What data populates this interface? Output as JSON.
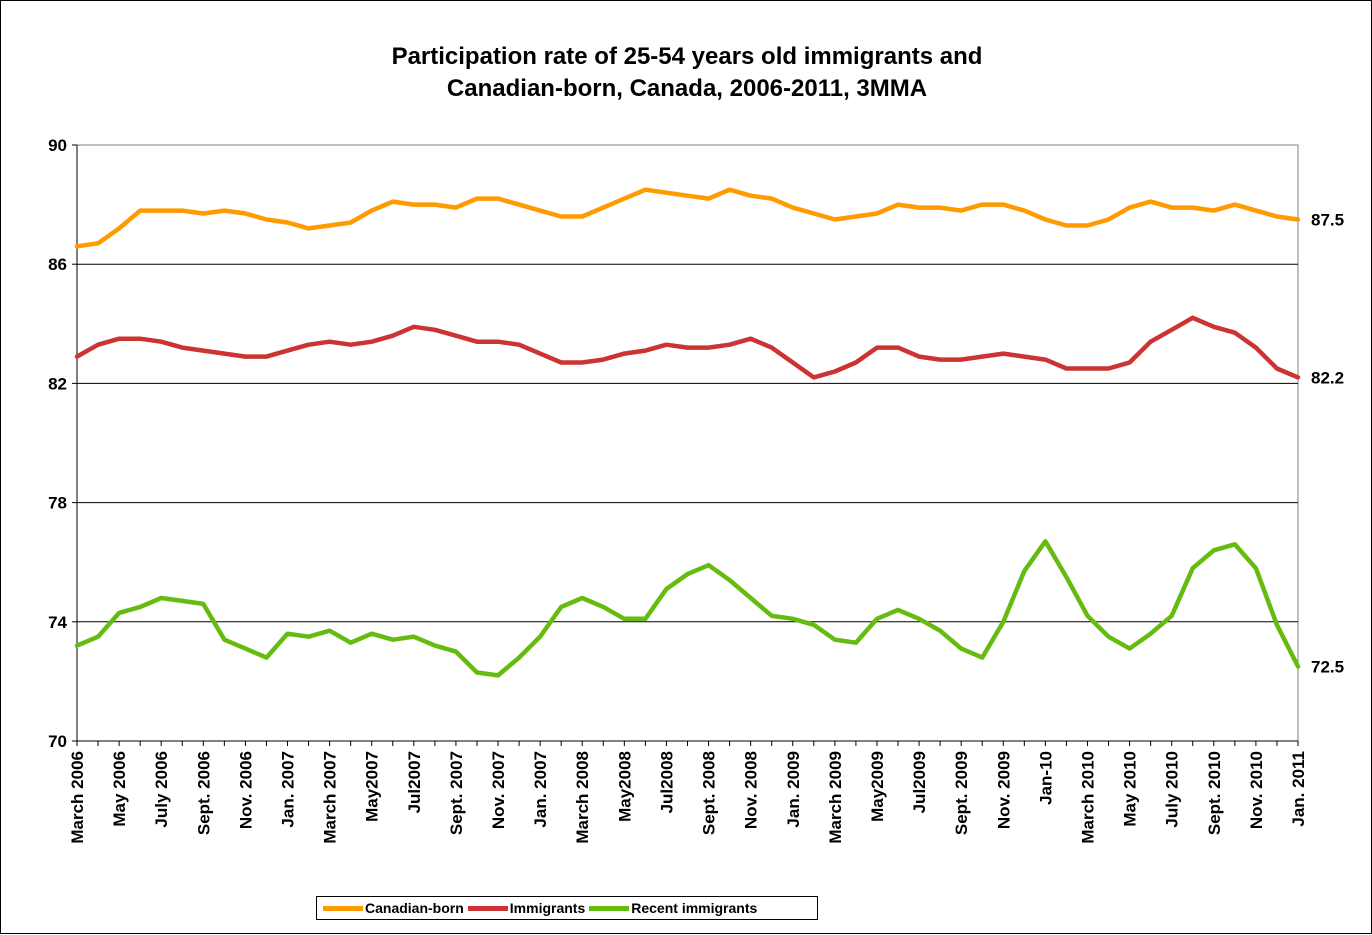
{
  "chart_data": {
    "type": "line",
    "title_lines": [
      "Participation rate of 25-54 years old immigrants and",
      "Canadian-born, Canada, 2006-2011, 3MMA"
    ],
    "xlabel": "",
    "ylabel": "",
    "ylim": [
      70,
      90
    ],
    "yticks": [
      "70",
      "74",
      "78",
      "82",
      "86",
      "90"
    ],
    "grid": "horizontal",
    "legend_position": "bottom",
    "tick_labels": [
      "March 2006",
      "May 2006",
      "July 2006",
      "Sept. 2006",
      "Nov. 2006",
      "Jan. 2007",
      "March 2007",
      "May2007",
      "Jul2007",
      "Sept. 2007",
      "Nov. 2007",
      "Jan. 2007",
      "March 2008",
      "May2008",
      "Jul2008",
      "Sept. 2008",
      "Nov. 2008",
      "Jan. 2009",
      "March 2009",
      "May2009",
      "Jul2009",
      "Sept. 2009",
      "Nov. 2009",
      "Jan-10",
      "March 2010",
      "May 2010",
      "July 2010",
      "Sept. 2010",
      "Nov. 2010",
      "Jan. 2011"
    ],
    "series": [
      {
        "name": "Canadian-born",
        "color": "#ff9a00",
        "end_label": "87.5",
        "values": [
          86.6,
          86.7,
          87.2,
          87.8,
          87.8,
          87.8,
          87.7,
          87.8,
          87.7,
          87.5,
          87.4,
          87.2,
          87.3,
          87.4,
          87.8,
          88.1,
          88.0,
          88.0,
          87.9,
          88.2,
          88.2,
          88.0,
          87.8,
          87.6,
          87.6,
          87.9,
          88.2,
          88.5,
          88.4,
          88.3,
          88.2,
          88.5,
          88.3,
          88.2,
          87.9,
          87.7,
          87.5,
          87.6,
          87.7,
          88.0,
          87.9,
          87.9,
          87.8,
          88.0,
          88.0,
          87.8,
          87.5,
          87.3,
          87.3,
          87.5,
          87.9,
          88.1,
          87.9,
          87.9,
          87.8,
          88.0,
          87.8,
          87.6,
          87.5
        ]
      },
      {
        "name": "Immigrants",
        "color": "#cc3333",
        "end_label": "82.2",
        "values": [
          82.9,
          83.3,
          83.5,
          83.5,
          83.4,
          83.2,
          83.1,
          83.0,
          82.9,
          82.9,
          83.1,
          83.3,
          83.4,
          83.3,
          83.4,
          83.6,
          83.9,
          83.8,
          83.6,
          83.4,
          83.4,
          83.3,
          83.0,
          82.7,
          82.7,
          82.8,
          83.0,
          83.1,
          83.3,
          83.2,
          83.2,
          83.3,
          83.5,
          83.2,
          82.7,
          82.2,
          82.4,
          82.7,
          83.2,
          83.2,
          82.9,
          82.8,
          82.8,
          82.9,
          83.0,
          82.9,
          82.8,
          82.5,
          82.5,
          82.5,
          82.7,
          83.4,
          83.8,
          84.2,
          83.9,
          83.7,
          83.2,
          82.5,
          82.2
        ]
      },
      {
        "name": "Recent immigrants",
        "color": "#66bb11",
        "end_label": "72.5",
        "values": [
          73.2,
          73.5,
          74.3,
          74.5,
          74.8,
          74.7,
          74.6,
          73.4,
          73.1,
          72.8,
          73.6,
          73.5,
          73.7,
          73.3,
          73.6,
          73.4,
          73.5,
          73.2,
          73.0,
          72.3,
          72.2,
          72.8,
          73.5,
          74.5,
          74.8,
          74.5,
          74.1,
          74.1,
          75.1,
          75.6,
          75.9,
          75.4,
          74.8,
          74.2,
          74.1,
          73.9,
          73.4,
          73.3,
          74.1,
          74.4,
          74.1,
          73.7,
          73.1,
          72.8,
          74.0,
          75.7,
          76.7,
          75.5,
          74.2,
          73.5,
          73.1,
          73.6,
          74.2,
          75.8,
          76.4,
          76.6,
          75.8,
          73.9,
          72.5
        ]
      }
    ]
  }
}
